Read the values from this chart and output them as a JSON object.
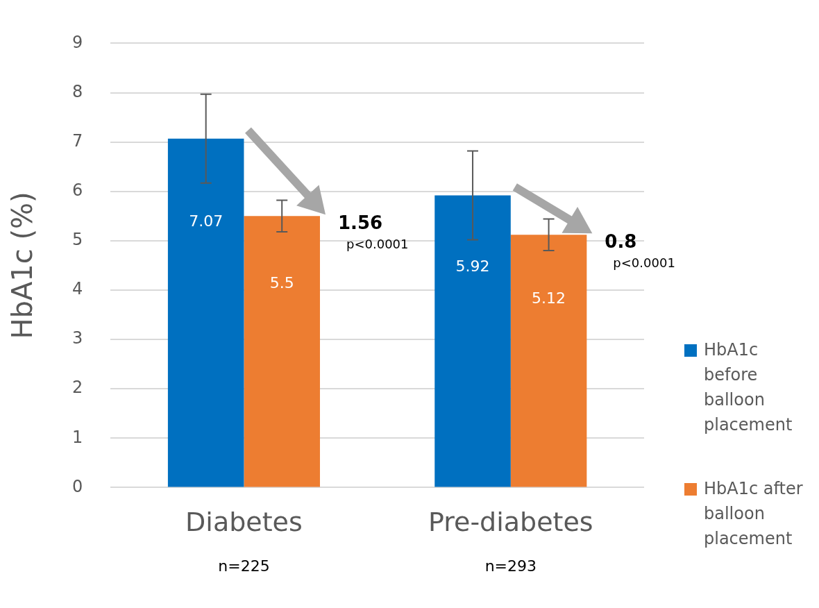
{
  "chart_data": {
    "type": "bar",
    "ylabel": "HbA1c (%)",
    "categories": [
      "Diabetes",
      "Pre-diabetes"
    ],
    "series": [
      {
        "name": "HbA1c before balloon placement",
        "color": "#0070c0",
        "values": [
          7.07,
          5.92
        ],
        "errors": [
          0.9,
          0.9
        ]
      },
      {
        "name": "HbA1c after balloon placement",
        "color": "#ed7d31",
        "values": [
          5.5,
          5.12
        ],
        "errors": [
          0.32,
          0.32
        ]
      }
    ],
    "ylim": [
      0,
      9
    ],
    "yticks": [
      0,
      1,
      2,
      3,
      4,
      5,
      6,
      7,
      8,
      9
    ],
    "grid": "y",
    "legend": "right",
    "data_labels": true,
    "annotations": [
      "1.56",
      "p<0.0001",
      "0.8",
      "p<0.0001",
      "n=225",
      "n=293"
    ]
  }
}
